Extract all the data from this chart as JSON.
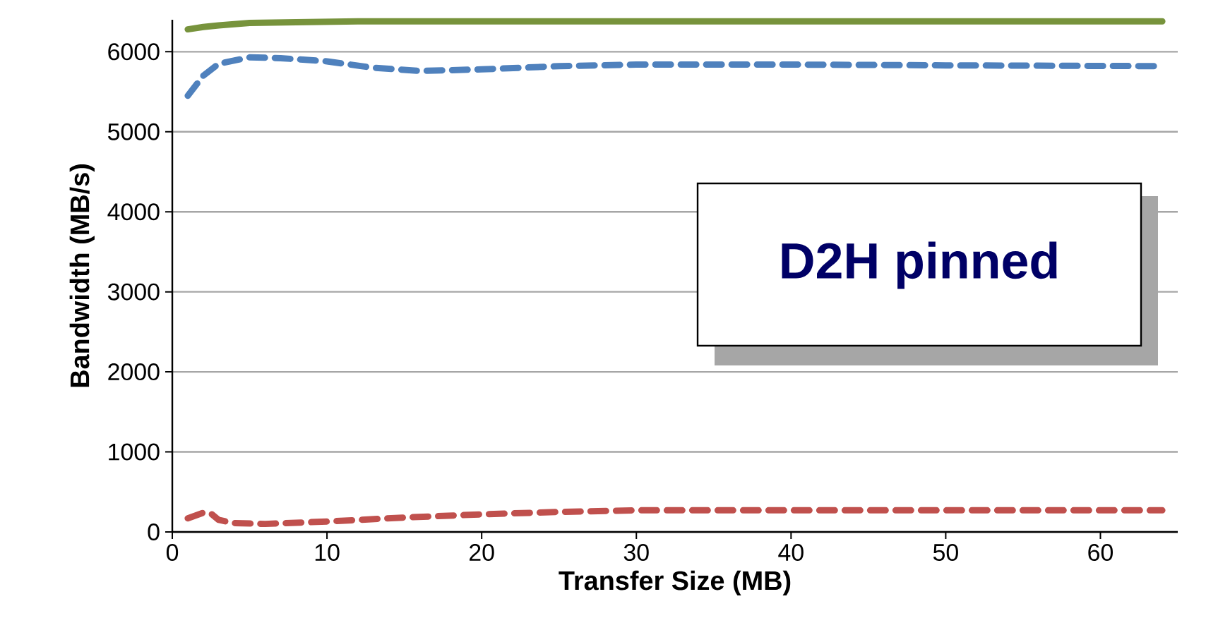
{
  "chart_data": {
    "type": "line",
    "xlabel": "Transfer Size (MB)",
    "ylabel": "Bandwidth (MB/s)",
    "xlim": [
      0,
      65
    ],
    "ylim": [
      0,
      6400
    ],
    "xticks": [
      0,
      10,
      20,
      30,
      40,
      50,
      60
    ],
    "yticks": [
      0,
      1000,
      2000,
      3000,
      4000,
      5000,
      6000
    ],
    "grid": "y",
    "annotations": [
      "D2H pinned"
    ],
    "series": [
      {
        "color": "#77933c",
        "line_style": "solid",
        "x": [
          1,
          2,
          3,
          5,
          8,
          12,
          20,
          30,
          40,
          50,
          64
        ],
        "values": [
          6280,
          6310,
          6330,
          6360,
          6370,
          6380,
          6380,
          6380,
          6380,
          6380,
          6380
        ]
      },
      {
        "color": "#4f81bd",
        "line_style": "dashed",
        "x": [
          1,
          2,
          3,
          5,
          7,
          10,
          13,
          16,
          20,
          25,
          30,
          40,
          50,
          64
        ],
        "values": [
          5450,
          5700,
          5850,
          5930,
          5920,
          5880,
          5800,
          5760,
          5780,
          5820,
          5840,
          5840,
          5830,
          5820
        ]
      },
      {
        "color": "#c0504d",
        "line_style": "dashed",
        "x": [
          1,
          2,
          2.5,
          3,
          4,
          6,
          10,
          15,
          20,
          25,
          30,
          40,
          50,
          64
        ],
        "values": [
          170,
          240,
          230,
          150,
          110,
          100,
          130,
          180,
          220,
          250,
          270,
          270,
          270,
          270
        ]
      }
    ]
  }
}
